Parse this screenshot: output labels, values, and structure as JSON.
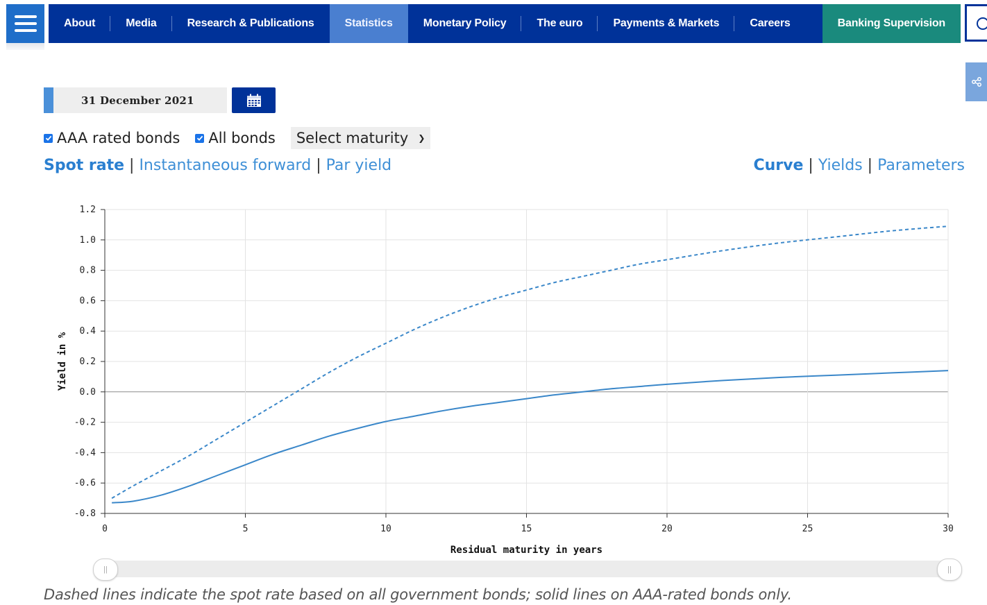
{
  "nav": {
    "items": [
      "About",
      "Media",
      "Research & Publications",
      "Statistics",
      "Monetary Policy",
      "The euro",
      "Payments & Markets",
      "Careers"
    ],
    "active": "Statistics",
    "highlight_item": "Banking Supervision",
    "menu_icon": "hamburger-icon",
    "search_icon": "search-icon",
    "share_icon": "share-icon",
    "colors": {
      "bar": "#003299",
      "active": "#4a7fd0",
      "highlight": "#1a8a7d"
    }
  },
  "date_picker": {
    "value": "31 December 2021",
    "icon": "calendar-icon"
  },
  "filters": {
    "aaa_label": "AAA rated bonds",
    "aaa_checked": true,
    "all_label": "All bonds",
    "all_checked": true,
    "maturity_select": "Select maturity"
  },
  "curve_type_links": [
    "Spot rate",
    "Instantaneous forward",
    "Par yield"
  ],
  "curve_type_active": "Spot rate",
  "view_links": [
    "Curve",
    "Yields",
    "Parameters"
  ],
  "view_active": "Curve",
  "chart_data": {
    "type": "line",
    "xlabel": "Residual maturity in years",
    "ylabel": "Yield in %",
    "xlim": [
      0,
      30
    ],
    "ylim": [
      -0.8,
      1.2
    ],
    "x_ticks": [
      "0",
      "5",
      "10",
      "15",
      "20",
      "25",
      "30"
    ],
    "y_ticks": [
      "-0.8",
      "-0.6",
      "-0.4",
      "-0.2",
      "0.0",
      "0.2",
      "0.4",
      "0.6",
      "0.8",
      "1.0",
      "1.2"
    ],
    "grid": true,
    "series": [
      {
        "style": "solid",
        "color": "#3a87c9",
        "x": [
          0.25,
          1,
          2,
          3,
          4,
          5,
          6,
          7,
          8,
          9,
          10,
          11,
          12,
          13,
          14,
          15,
          16,
          17,
          18,
          19,
          20,
          22,
          24,
          26,
          28,
          30
        ],
        "y": [
          -0.73,
          -0.72,
          -0.68,
          -0.62,
          -0.55,
          -0.48,
          -0.41,
          -0.35,
          -0.29,
          -0.24,
          -0.195,
          -0.16,
          -0.125,
          -0.095,
          -0.07,
          -0.045,
          -0.02,
          0.0,
          0.02,
          0.035,
          0.05,
          0.075,
          0.095,
          0.11,
          0.125,
          0.14
        ]
      },
      {
        "style": "dashed",
        "color": "#3a87c9",
        "x": [
          0.25,
          1,
          2,
          3,
          4,
          5,
          6,
          7,
          8,
          9,
          10,
          11,
          12,
          13,
          14,
          15,
          16,
          17,
          18,
          19,
          20,
          22,
          24,
          26,
          28,
          30
        ],
        "y": [
          -0.7,
          -0.62,
          -0.52,
          -0.42,
          -0.31,
          -0.2,
          -0.09,
          0.02,
          0.13,
          0.23,
          0.32,
          0.41,
          0.49,
          0.56,
          0.62,
          0.67,
          0.72,
          0.76,
          0.8,
          0.84,
          0.87,
          0.93,
          0.98,
          1.02,
          1.06,
          1.09
        ]
      }
    ]
  },
  "slider": {
    "range": [
      0,
      30
    ]
  },
  "footnote": "Dashed lines indicate the spot rate based on all government bonds; solid lines on AAA-rated bonds only."
}
